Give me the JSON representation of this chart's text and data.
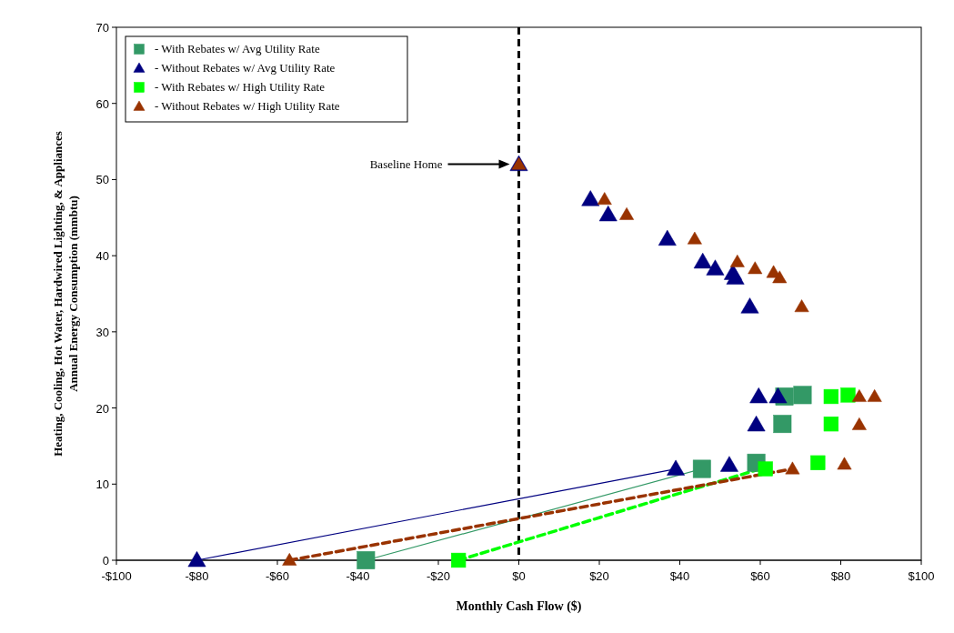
{
  "chart_data": {
    "type": "scatter",
    "xlabel": "Monthly Cash Flow ($)",
    "ylabel": "Heating, Cooling, Hot Water, Hardwired Lighting, & Appliances\nAnnual Energy Consumption (mmbtu)",
    "xlim": [
      -100,
      100
    ],
    "xticks": [
      {
        "value": -100,
        "label": "-$100"
      },
      {
        "value": -80,
        "label": "-$80"
      },
      {
        "value": -60,
        "label": "-$60"
      },
      {
        "value": -40,
        "label": "-$40"
      },
      {
        "value": -20,
        "label": "-$20"
      },
      {
        "value": 0,
        "label": "$0"
      },
      {
        "value": 20,
        "label": "$20"
      },
      {
        "value": 40,
        "label": "$40"
      },
      {
        "value": 60,
        "label": "$60"
      },
      {
        "value": 80,
        "label": "$80"
      },
      {
        "value": 100,
        "label": "$100"
      }
    ],
    "ylim": [
      0,
      70
    ],
    "yticks": [
      0,
      10,
      20,
      30,
      40,
      50,
      60,
      70
    ],
    "grid": false,
    "legend": "top left",
    "ref_lines": [
      {
        "axis": "x",
        "value": 0,
        "color": "#000000",
        "line_style": "dashed"
      }
    ],
    "annotations": [
      "Baseline Home"
    ],
    "series": [
      {
        "type": "line",
        "color": "#000080",
        "line_style": "solid",
        "x": [
          -80,
          39
        ],
        "values": [
          0,
          12
        ]
      },
      {
        "type": "line",
        "color": "#339966",
        "line_style": "solid",
        "x": [
          -38,
          45.5
        ],
        "values": [
          0,
          12
        ]
      },
      {
        "type": "line",
        "color": "#00ff00",
        "line_style": "dashed",
        "x": [
          -15,
          60
        ],
        "values": [
          0,
          12
        ]
      },
      {
        "type": "line",
        "color": "#993300",
        "line_style": "dashed",
        "x": [
          -57,
          68
        ],
        "values": [
          0,
          12
        ]
      },
      {
        "name": "- With Rebates w/ Avg Utility Rate",
        "color": "#339966",
        "marker": "square",
        "x": [
          -38,
          45.5,
          59,
          66,
          70.5,
          65.5
        ],
        "values": [
          0,
          12,
          12.8,
          21.5,
          21.7,
          17.9
        ]
      },
      {
        "name": "- Without Rebates w/ Avg Utility Rate",
        "color": "#000080",
        "marker": "triangle",
        "x": [
          -80,
          39,
          52.3,
          59,
          59.6,
          64.4,
          57.4,
          53.8,
          53.2,
          48.8,
          45.7,
          36.9,
          22.2,
          17.8,
          0
        ],
        "values": [
          0,
          12,
          12.5,
          17.8,
          21.5,
          21.5,
          33.3,
          37.1,
          37.7,
          38.3,
          39.2,
          42.2,
          45.4,
          47.4,
          52
        ]
      },
      {
        "name": "- With Rebates w/ High Utility Rate",
        "color": "#00ff00",
        "marker": "square",
        "x": [
          -15,
          61.3,
          74.3,
          77.6,
          77.6,
          81.8
        ],
        "values": [
          0,
          12,
          12.8,
          17.9,
          21.5,
          21.7
        ]
      },
      {
        "name": "- Without Rebates w/ High Utility Rate",
        "color": "#993300",
        "marker": "triangle",
        "x": [
          -57,
          68,
          80.9,
          84.6,
          84.6,
          88.4,
          70.3,
          64.8,
          63.3,
          58.7,
          54.3,
          43.7,
          26.8,
          21.3,
          0
        ],
        "values": [
          0,
          12,
          12.6,
          17.8,
          21.5,
          21.5,
          33.3,
          37.1,
          37.8,
          38.3,
          39.2,
          42.2,
          45.4,
          47.4,
          52
        ]
      }
    ]
  }
}
